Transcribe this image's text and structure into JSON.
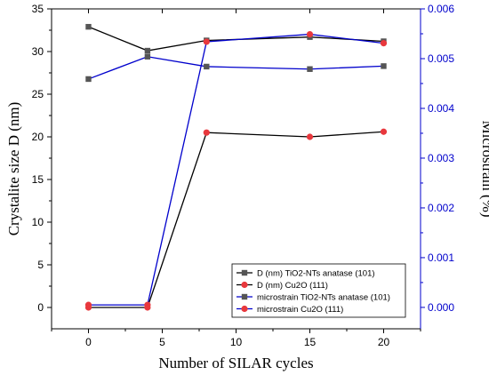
{
  "chart_data": {
    "type": "line",
    "xlabel": "Number of SILAR cycles",
    "ylabel": "Crystalite size D (nm)",
    "y2label": "Microstrain (%)",
    "xlim": [
      -2.5,
      22.5
    ],
    "ylim": [
      -2.5,
      35
    ],
    "y2lim": [
      -0.00043,
      0.006
    ],
    "xticks": [
      0,
      5,
      10,
      15,
      20
    ],
    "yticks": [
      0,
      5,
      10,
      15,
      20,
      25,
      30,
      35
    ],
    "y2ticks": [
      0.0,
      0.001,
      0.002,
      0.003,
      0.004,
      0.005,
      0.006
    ],
    "xtick_labels": [
      "0",
      "5",
      "10",
      "15",
      "20"
    ],
    "ytick_labels": [
      "0",
      "5",
      "10",
      "15",
      "20",
      "25",
      "30",
      "35"
    ],
    "y2tick_labels": [
      "0.000",
      "0.001",
      "0.002",
      "0.003",
      "0.004",
      "0.005",
      "0.006"
    ],
    "x": [
      0,
      4,
      8,
      15,
      20
    ],
    "legend_position": "bottom-right",
    "series": [
      {
        "name": "D (nm) TiO2-NTs anatase (101)",
        "axis": "left",
        "line_color": "#000000",
        "marker": "square",
        "marker_color": "#555555",
        "values": [
          32.9,
          30.1,
          31.3,
          31.7,
          31.2
        ]
      },
      {
        "name": "D (nm) Cu2O (111)",
        "axis": "left",
        "line_color": "#000000",
        "marker": "circle",
        "marker_color": "#e8383d",
        "values": [
          0,
          0,
          20.5,
          20.0,
          20.6
        ]
      },
      {
        "name": "microstrain TiO2-NTs anatase (101)",
        "axis": "right",
        "line_color": "#0000cc",
        "marker": "square",
        "marker_color": "#555555",
        "values": [
          0.00459,
          0.00504,
          0.00484,
          0.00479,
          0.00485
        ]
      },
      {
        "name": "microstrain Cu2O (111)",
        "axis": "right",
        "line_color": "#0000cc",
        "marker": "circle",
        "marker_color": "#e8383d",
        "values": [
          5e-05,
          5e-05,
          0.00534,
          0.00549,
          0.00531
        ]
      }
    ]
  }
}
